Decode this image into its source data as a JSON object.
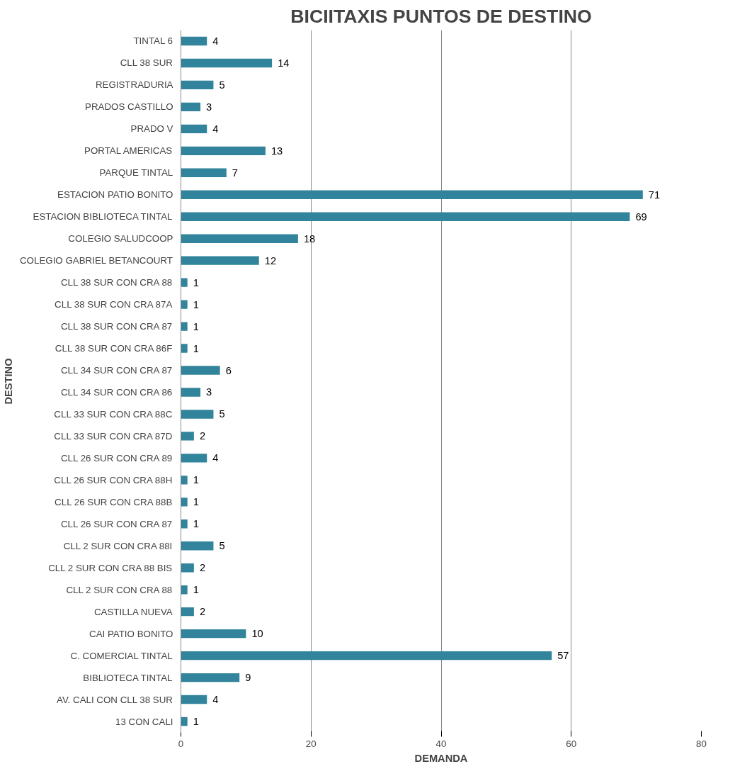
{
  "chart_data": {
    "type": "bar",
    "orientation": "horizontal",
    "title": "BICIITAXIS PUNTOS DE DESTINO",
    "xlabel": "DEMANDA",
    "ylabel": "DESTINO",
    "categories": [
      "TINTAL 6",
      "CLL 38 SUR",
      "REGISTRADURIA",
      "PRADOS CASTILLO",
      "PRADO V",
      "PORTAL AMERICAS",
      "PARQUE TINTAL",
      "ESTACION PATIO BONITO",
      "ESTACION BIBLIOTECA TINTAL",
      "COLEGIO SALUDCOOP",
      "COLEGIO GABRIEL BETANCOURT",
      "CLL 38 SUR CON CRA 88",
      "CLL 38 SUR CON CRA 87A",
      "CLL 38 SUR CON CRA 87",
      "CLL 38 SUR CON CRA 86F",
      "CLL 34 SUR CON CRA 87",
      "CLL 34 SUR CON CRA 86",
      "CLL 33 SUR CON CRA 88C",
      "CLL 33 SUR CON CRA 87D",
      "CLL 26 SUR CON CRA 89",
      "CLL 26 SUR CON CRA 88H",
      "CLL 26 SUR CON CRA 88B",
      "CLL 26 SUR CON CRA 87",
      "CLL 2 SUR CON CRA 88I",
      "CLL 2 SUR CON CRA 88 BIS",
      "CLL 2 SUR CON CRA 88",
      "CASTILLA NUEVA",
      "CAI PATIO BONITO",
      "C. COMERCIAL TINTAL",
      "BIBLIOTECA TINTAL",
      "AV. CALI CON CLL 38 SUR",
      "13 CON CALI"
    ],
    "values": [
      4,
      14,
      5,
      3,
      4,
      13,
      7,
      71,
      69,
      18,
      12,
      1,
      1,
      1,
      1,
      6,
      3,
      5,
      2,
      4,
      1,
      1,
      1,
      5,
      2,
      1,
      2,
      10,
      57,
      9,
      4,
      1
    ],
    "color": "#31849b",
    "data_labels": true,
    "xlim": [
      0,
      80
    ],
    "xticks": [
      0,
      20,
      40,
      60,
      80
    ],
    "grid": "x"
  }
}
